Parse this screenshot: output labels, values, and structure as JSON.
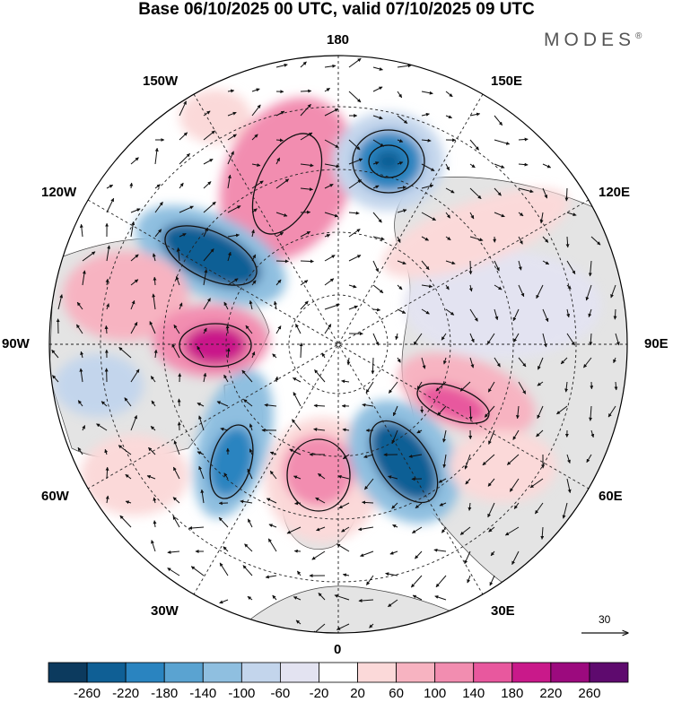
{
  "title": "Base 06/10/2025 00 UTC, valid 07/10/2025 09 UTC",
  "brand": "MODES",
  "brand_mark": "®",
  "longitude_labels": {
    "top": "180",
    "top_left": "150W",
    "top_right": "150E",
    "upper_left": "120W",
    "upper_right": "120E",
    "left": "90W",
    "right": "90E",
    "lower_left": "60W",
    "lower_right": "60E",
    "bottom_left": "30W",
    "bottom_right": "30E",
    "bottom": "0"
  },
  "reference_vector": {
    "label": "30"
  },
  "colorbar": {
    "ticks": [
      "-260",
      "-220",
      "-180",
      "-140",
      "-100",
      "-60",
      "-20",
      "20",
      "60",
      "100",
      "140",
      "180",
      "220",
      "260"
    ],
    "colors": [
      "#0c3a5e",
      "#0f5f95",
      "#2a84c0",
      "#5aa3d1",
      "#8fbfe0",
      "#c3d5ec",
      "#e3e3f1",
      "#ffffff",
      "#fbd9d9",
      "#f7b3c1",
      "#f28db0",
      "#e8589e",
      "#c9198a",
      "#9c0a7e",
      "#5e0a6e"
    ]
  },
  "anomalies": [
    {
      "name": "pacific-positive",
      "color": "#f28db0"
    },
    {
      "name": "bering-negative",
      "color": "#2a84c0"
    },
    {
      "name": "alaska-negative",
      "color": "#0f5f95"
    },
    {
      "name": "canada-positive",
      "color": "#c9198a"
    },
    {
      "name": "atlantic-negative",
      "color": "#2a84c0"
    },
    {
      "name": "europe-positive",
      "color": "#f28db0"
    },
    {
      "name": "scandinavia-negative",
      "color": "#0f5f95"
    },
    {
      "name": "siberia-positive",
      "color": "#e8589e"
    }
  ]
}
